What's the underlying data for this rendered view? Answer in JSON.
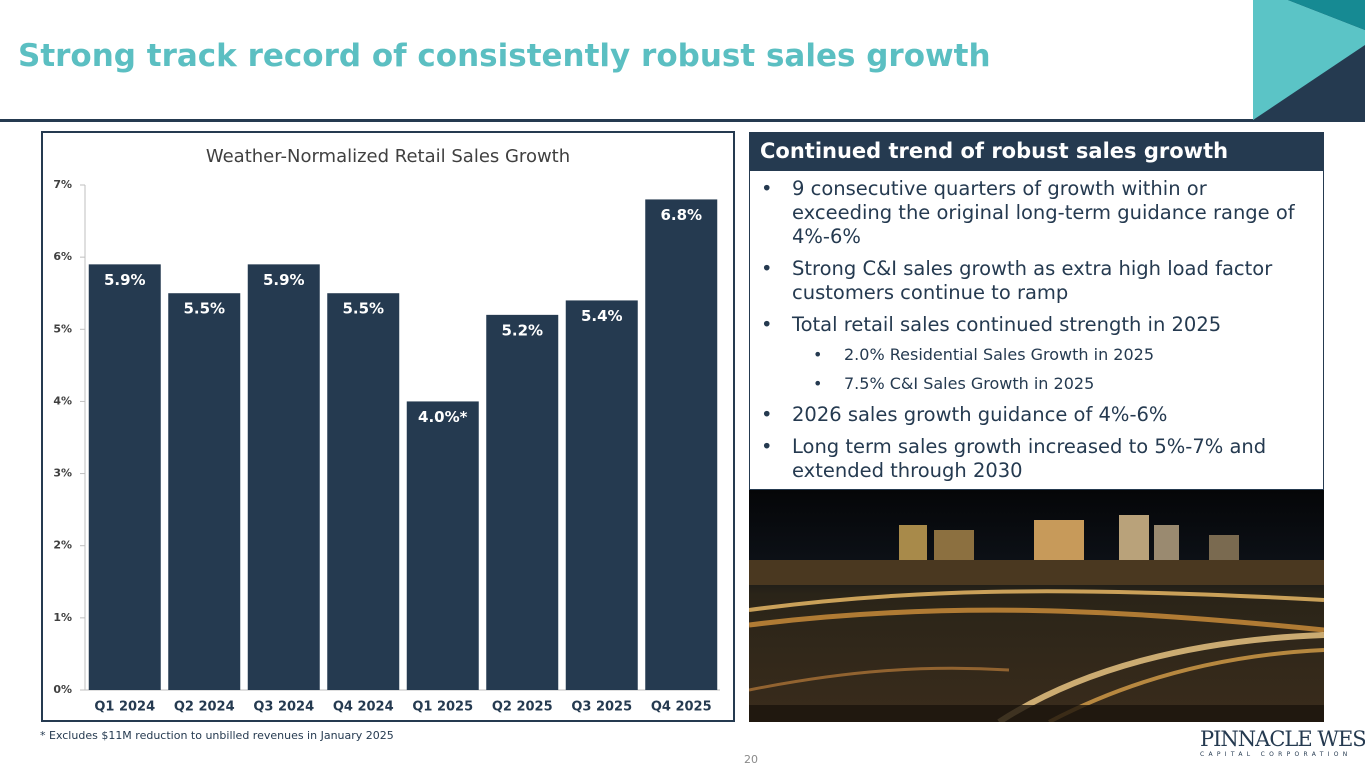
{
  "slide": {
    "title": "Strong track record of consistently robust sales growth",
    "footnote": "* Excludes $11M reduction to unbilled revenues in January 2025",
    "page_number": "20",
    "logo": {
      "name": "PINNACLE WEST",
      "subtitle": "CAPITAL CORPORATION"
    }
  },
  "panel": {
    "heading": "Continued trend of robust sales growth",
    "bullets": [
      {
        "text": "9 consecutive quarters of growth within or exceeding the original long-term guidance range of 4%-6%",
        "level": 1
      },
      {
        "text": "Strong C&I sales growth as extra high load factor customers continue to ramp",
        "level": 1
      },
      {
        "text": "Total retail sales continued strength in 2025",
        "level": 1
      },
      {
        "text": "2.0% Residential Sales Growth in 2025",
        "level": 2
      },
      {
        "text": "7.5% C&I Sales Growth in 2025",
        "level": 2
      },
      {
        "text": "2026 sales growth guidance of 4%-6%",
        "level": 1
      },
      {
        "text": "Long term sales growth increased to 5%-7% and extended through 2030",
        "level": 1
      }
    ]
  },
  "chart_data": {
    "type": "bar",
    "title": "Weather-Normalized Retail Sales Growth",
    "categories": [
      "Q1 2024",
      "Q2 2024",
      "Q3 2024",
      "Q4 2024",
      "Q1 2025",
      "Q2 2025",
      "Q3 2025",
      "Q4 2025"
    ],
    "values": [
      5.9,
      5.5,
      5.9,
      5.5,
      4.0,
      5.2,
      5.4,
      6.8
    ],
    "value_labels": [
      "5.9%",
      "5.5%",
      "5.9%",
      "5.5%",
      "4.0%*",
      "5.2%",
      "5.4%",
      "6.8%"
    ],
    "color": "#253a50",
    "ylim": [
      0,
      7
    ],
    "yticks": [
      {
        "value": 0,
        "label": "0%"
      },
      {
        "value": 1,
        "label": "1%"
      },
      {
        "value": 2,
        "label": "2%"
      },
      {
        "value": 3,
        "label": "3%"
      },
      {
        "value": 4,
        "label": "4%"
      },
      {
        "value": 5,
        "label": "5%"
      },
      {
        "value": 6,
        "label": "6%"
      },
      {
        "value": 7,
        "label": "7%"
      }
    ],
    "grid": false
  }
}
